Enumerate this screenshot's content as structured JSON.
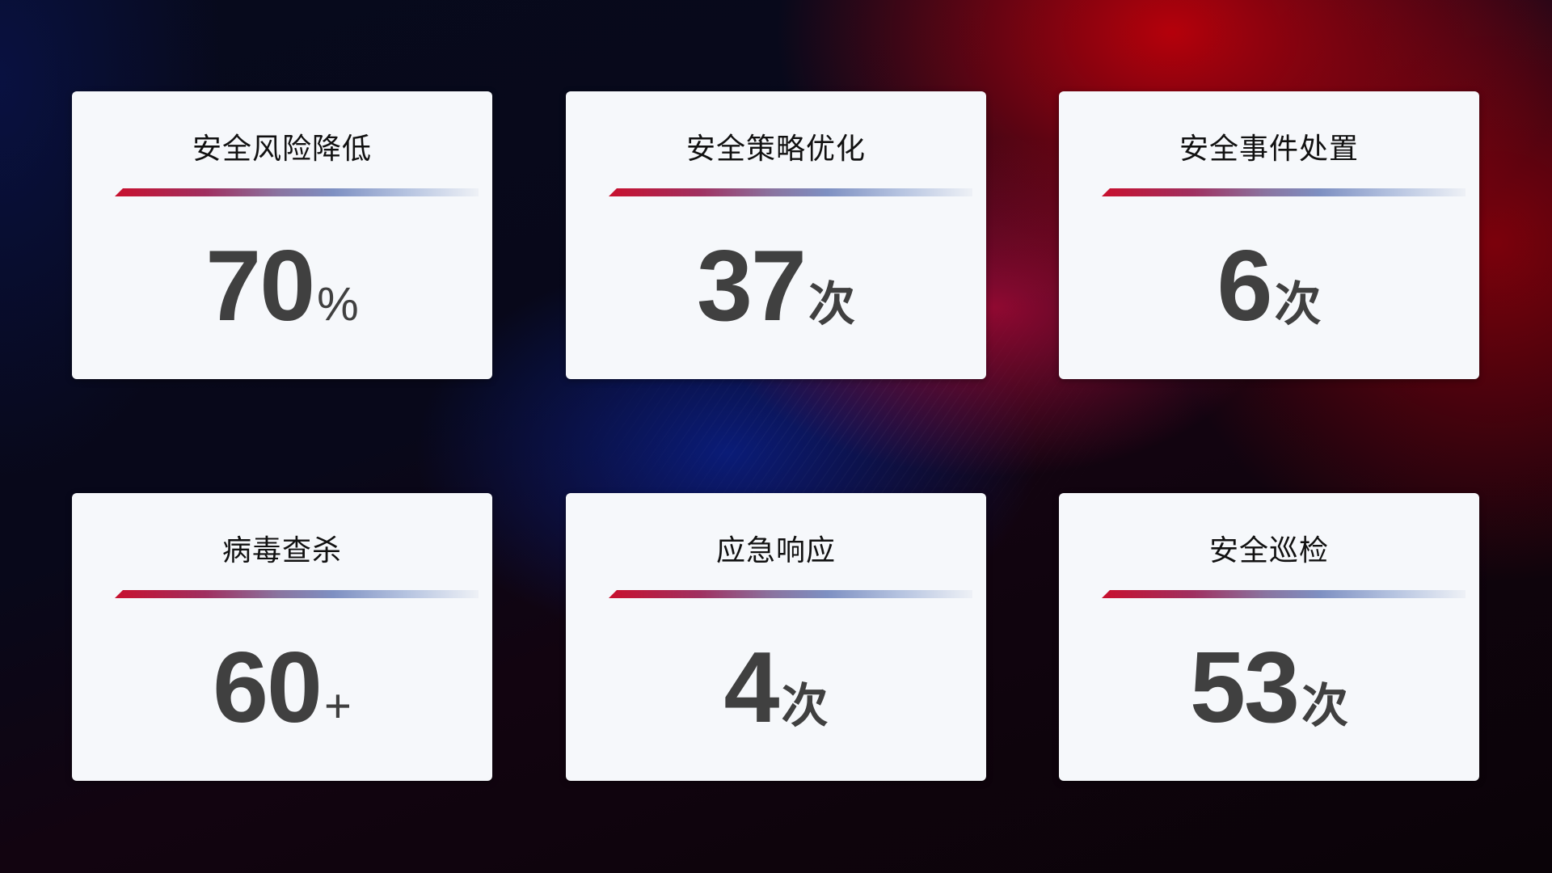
{
  "cards": [
    {
      "title": "安全风险降低",
      "value": "70",
      "unit": "%"
    },
    {
      "title": "安全策略优化",
      "value": "37",
      "unit": "次"
    },
    {
      "title": "安全事件处置",
      "value": "6",
      "unit": "次"
    },
    {
      "title": "病毒查杀",
      "value": "60",
      "unit": "+"
    },
    {
      "title": "应急响应",
      "value": "4",
      "unit": "次"
    },
    {
      "title": "安全巡检",
      "value": "53",
      "unit": "次"
    }
  ],
  "colors": {
    "accent_red": "#c8102e",
    "accent_blue": "#7e90c2",
    "card_bg": "#f6f8fb",
    "value_text": "#404040"
  }
}
